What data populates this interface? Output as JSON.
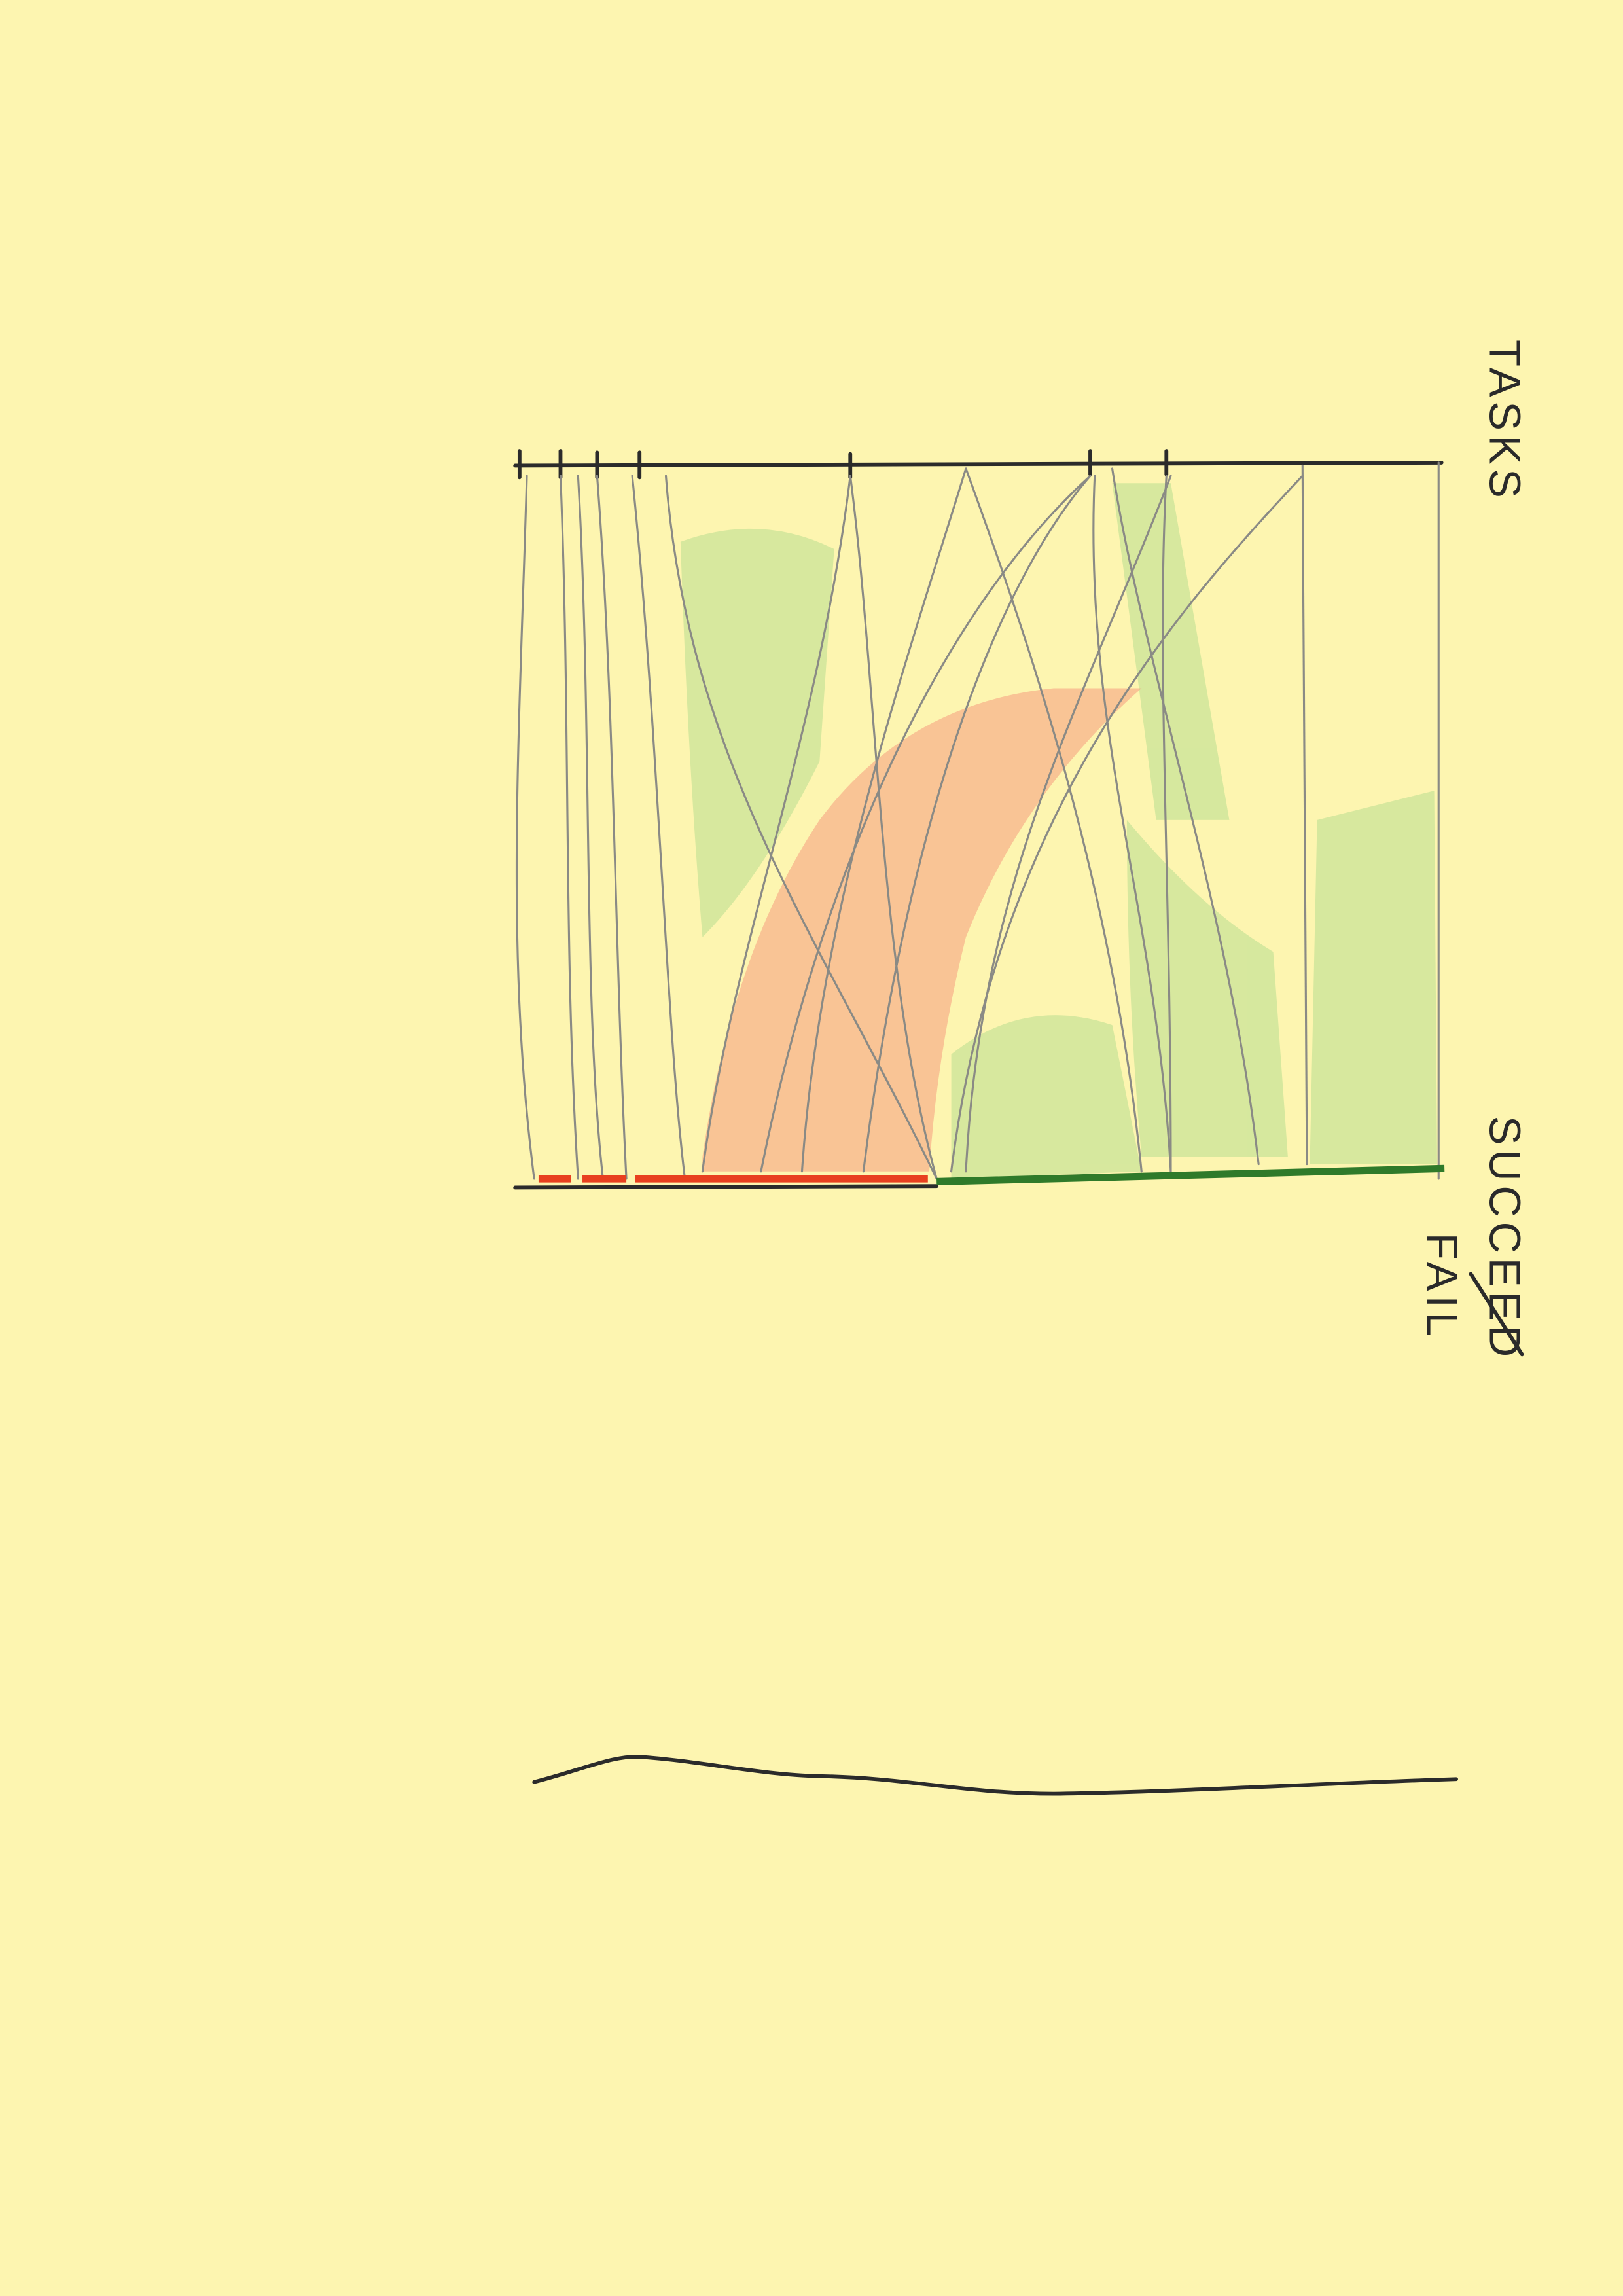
{
  "labels": {
    "top": "TASKS",
    "bottom_upper": "SUCCEED",
    "bottom_lower": "FAIL"
  }
}
